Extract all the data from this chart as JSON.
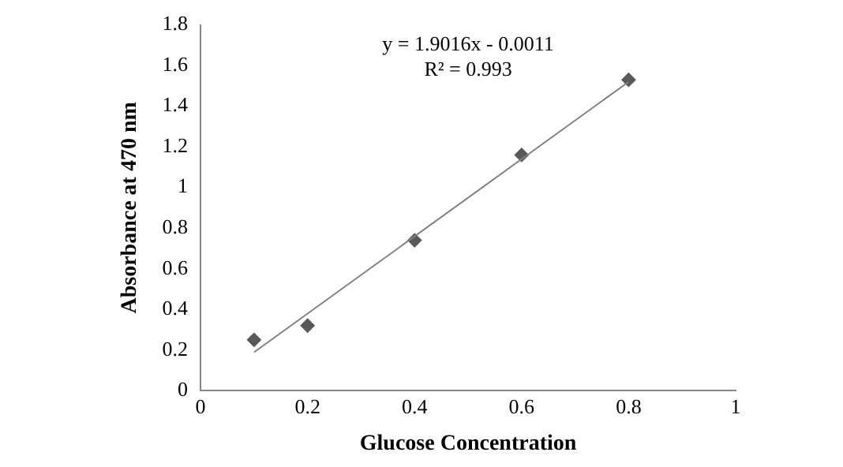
{
  "chart_data": {
    "type": "scatter",
    "xlabel": "Glucose Concentration",
    "ylabel": "Absorbance at 470 nm",
    "x": [
      0.1,
      0.2,
      0.4,
      0.6,
      0.8
    ],
    "series": [
      {
        "color": "#595959",
        "marker": "diamond",
        "values": [
          0.25,
          0.32,
          0.74,
          1.16,
          1.53
        ]
      },
      {
        "type": "line",
        "color": "#7f7f7f",
        "x": [
          0.1,
          0.8
        ],
        "values": [
          0.189,
          1.52
        ],
        "marker": "none"
      }
    ],
    "annotations": [
      "y = 1.9016x - 0.0011",
      "R² = 0.993"
    ],
    "xlim": [
      0,
      1
    ],
    "xticks": [
      0,
      0.2,
      0.4,
      0.6,
      0.8,
      1
    ],
    "ylim": [
      0,
      1.8
    ],
    "yticks": [
      0,
      0.2,
      0.4,
      0.6,
      0.8,
      1,
      1.2,
      1.4,
      1.6,
      1.8
    ],
    "grid": false,
    "legend": false
  }
}
